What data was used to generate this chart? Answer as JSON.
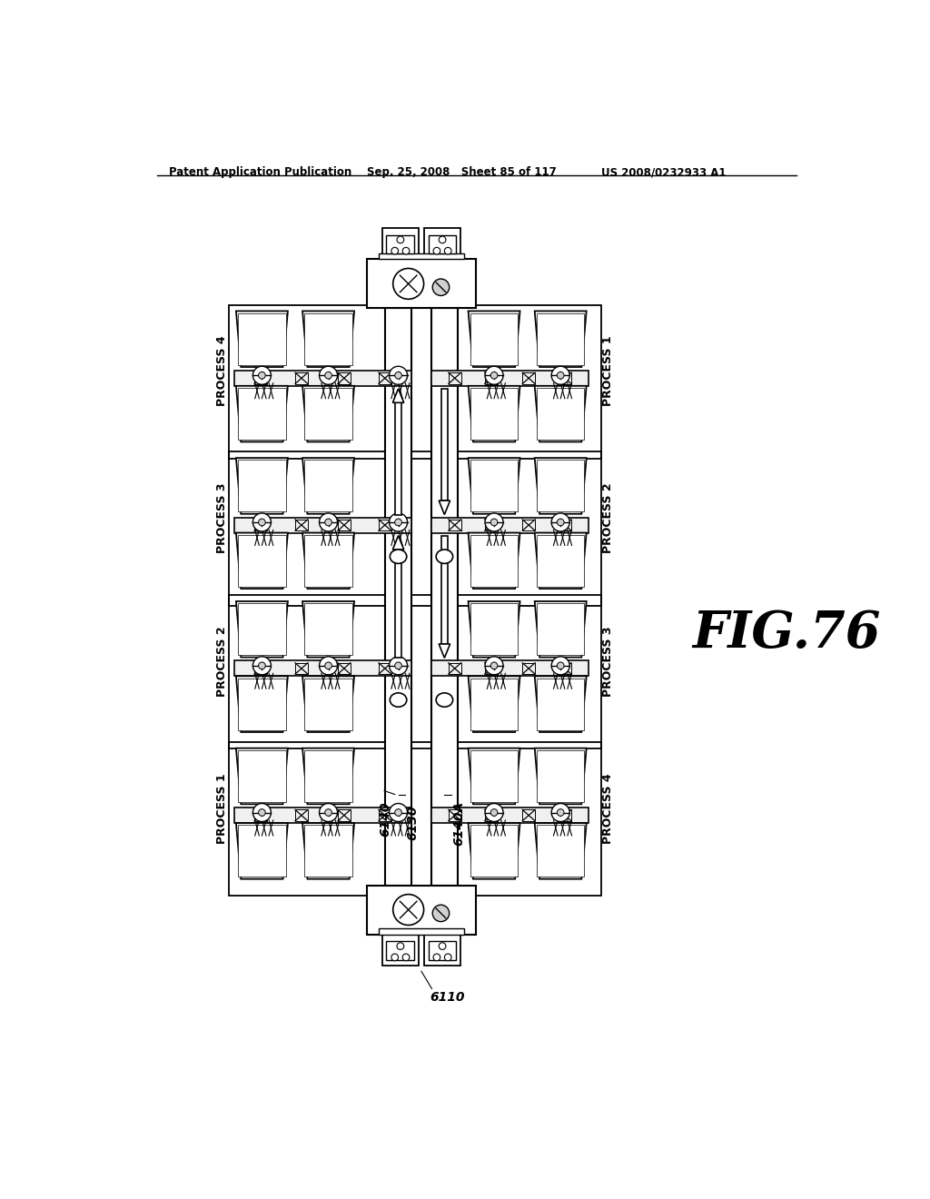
{
  "header_left": "Patent Application Publication",
  "header_mid": "Sep. 25, 2008   Sheet 85 of 117",
  "header_right": "US 2008/0232933 A1",
  "fig_label": "FIG.76",
  "label_6110": "6110",
  "label_6130": "6130",
  "label_6140": "6140",
  "label_6140A": "6140A",
  "left_process_labels": [
    "PROCESS 4",
    "PROCESS 3",
    "PROCESS 2",
    "PROCESS 1"
  ],
  "right_process_labels": [
    "PROCESS 1",
    "PROCESS 2",
    "PROCESS 3",
    "PROCESS 4"
  ],
  "bg_color": "#ffffff",
  "line_color": "#000000"
}
